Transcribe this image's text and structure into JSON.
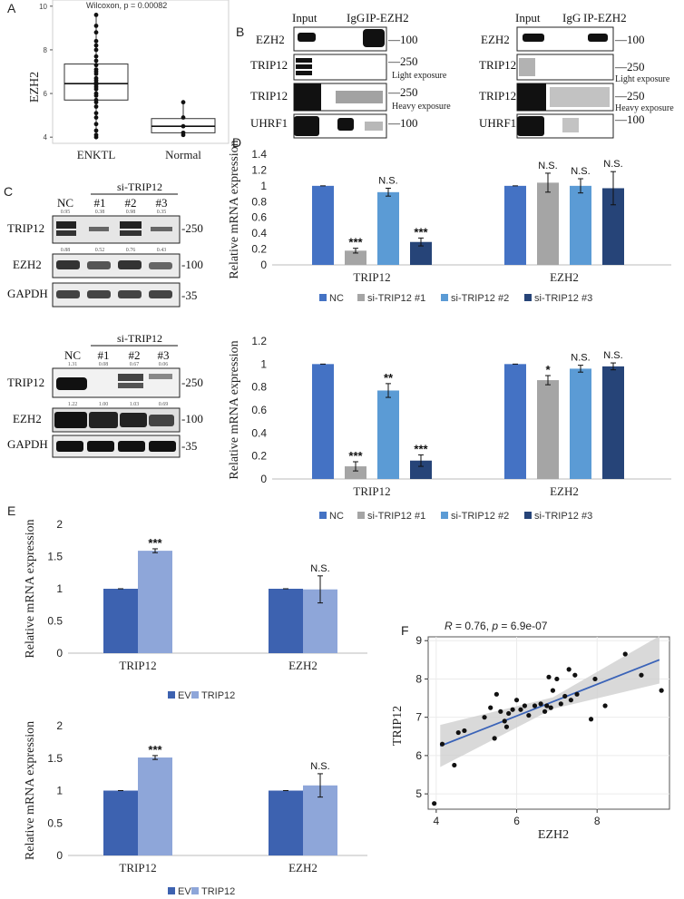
{
  "panels": {
    "A": "A",
    "B": "B",
    "C": "C",
    "D": "D",
    "E": "E",
    "F": "F"
  },
  "colors": {
    "nc": "#4472c4",
    "si1": "#a5a5a5",
    "si2": "#5b9bd5",
    "si3": "#264478",
    "ev": "#3d62b0",
    "trip12": "#8ea6d9",
    "fit_line": "#3a63b8",
    "ci_band": "#cfcfcf"
  },
  "panel_b": {
    "left": {
      "header": {
        "input": "Input",
        "igg": "IgG",
        "ip": "IP-EZH2"
      },
      "rows": [
        {
          "label": "EZH2",
          "size": "100",
          "note": ""
        },
        {
          "label": "TRIP12",
          "size": "250",
          "note": "Light exposure"
        },
        {
          "label": "TRIP12",
          "size": "250",
          "note": "Heavy exposure"
        },
        {
          "label": "UHRF1",
          "size": "100",
          "note": ""
        }
      ]
    },
    "right": {
      "header": {
        "input": "Input",
        "igg": "IgG",
        "ip": "IP-EZH2"
      },
      "rows": [
        {
          "label": "EZH2",
          "size": "100",
          "note": ""
        },
        {
          "label": "TRIP12",
          "size": "250",
          "note": "Light exposure"
        },
        {
          "label": "TRIP12",
          "size": "250",
          "note": "Heavy exposure"
        },
        {
          "label": "UHRF1",
          "size": "100",
          "note": ""
        }
      ]
    }
  },
  "panel_c": {
    "top": {
      "group": "si-TRIP12",
      "lanes": [
        "NC",
        "#1",
        "#2",
        "#3"
      ],
      "trip12_quant": [
        "0.95",
        "0.38",
        "0.98",
        "0.35"
      ],
      "ezh2_quant": [
        "0.88",
        "0.52",
        "0.76",
        "0.43"
      ],
      "rows": [
        {
          "label": "TRIP12",
          "size": "250"
        },
        {
          "label": "EZH2",
          "size": "100"
        },
        {
          "label": "GAPDH",
          "size": "35"
        }
      ]
    },
    "bottom": {
      "group": "si-TRIP12",
      "lanes": [
        "NC",
        "#1",
        "#2",
        "#3"
      ],
      "trip12_quant": [
        "1.31",
        "0.08",
        "0.67",
        "0.06"
      ],
      "ezh2_quant": [
        "1.22",
        "1.00",
        "1.03",
        "0.69"
      ],
      "rows": [
        {
          "label": "TRIP12",
          "size": "250"
        },
        {
          "label": "EZH2",
          "size": "100"
        },
        {
          "label": "GAPDH",
          "size": "35"
        }
      ]
    }
  },
  "chart_data": [
    {
      "id": "A",
      "type": "box",
      "title": "Wilcoxon, p = 0.00082",
      "ylabel": "EZH2",
      "ylim": [
        3.8,
        10.2
      ],
      "yticks": [
        4,
        6,
        8,
        10
      ],
      "categories": [
        "ENKTL",
        "Normal"
      ],
      "boxes": [
        {
          "name": "ENKTL",
          "min": 4.0,
          "q1": 5.7,
          "median": 6.45,
          "q3": 7.35,
          "max": 9.6,
          "points": [
            4.0,
            4.1,
            4.3,
            4.6,
            4.9,
            5.1,
            5.4,
            5.6,
            5.7,
            5.9,
            6.0,
            6.2,
            6.3,
            6.4,
            6.5,
            6.6,
            6.7,
            6.9,
            7.0,
            7.1,
            7.3,
            7.5,
            7.7,
            8.0,
            8.2,
            8.4,
            8.8,
            9.1,
            9.6
          ]
        },
        {
          "name": "Normal",
          "min": 4.1,
          "q1": 4.2,
          "median": 4.5,
          "q3": 4.85,
          "max": 5.6,
          "points": [
            4.1,
            4.2,
            4.5,
            4.9,
            5.6
          ]
        }
      ]
    },
    {
      "id": "D-top",
      "type": "bar",
      "ylabel": "Relative mRNA expression",
      "ylim": [
        0,
        1.4
      ],
      "yticks": [
        "0",
        "0.2",
        "0.4",
        "0.6",
        "0.8",
        "1",
        "1.2",
        "1.4"
      ],
      "categories": [
        "TRIP12",
        "EZH2"
      ],
      "series": [
        {
          "name": "NC",
          "values": [
            1.0,
            1.0
          ],
          "errors": [
            0.005,
            0.005
          ],
          "sig": [
            "",
            ""
          ]
        },
        {
          "name": "si-TRIP12 #1",
          "values": [
            0.18,
            1.04
          ],
          "errors": [
            0.03,
            0.12
          ],
          "sig": [
            "***",
            "N.S."
          ]
        },
        {
          "name": "si-TRIP12 #2",
          "values": [
            0.92,
            1.0
          ],
          "errors": [
            0.05,
            0.09
          ],
          "sig": [
            "N.S.",
            "N.S."
          ]
        },
        {
          "name": "si-TRIP12 #3",
          "values": [
            0.29,
            0.97
          ],
          "errors": [
            0.05,
            0.21
          ],
          "sig": [
            "***",
            "N.S."
          ]
        }
      ]
    },
    {
      "id": "D-bottom",
      "type": "bar",
      "ylabel": "Relative mRNA expression",
      "ylim": [
        0,
        1.2
      ],
      "yticks": [
        "0",
        "0.2",
        "0.4",
        "0.6",
        "0.8",
        "1",
        "1.2"
      ],
      "categories": [
        "TRIP12",
        "EZH2"
      ],
      "series": [
        {
          "name": "NC",
          "values": [
            1.0,
            1.0
          ],
          "errors": [
            0.005,
            0.005
          ],
          "sig": [
            "",
            ""
          ]
        },
        {
          "name": "si-TRIP12 #1",
          "values": [
            0.11,
            0.86
          ],
          "errors": [
            0.04,
            0.04
          ],
          "sig": [
            "***",
            "*"
          ]
        },
        {
          "name": "si-TRIP12 #2",
          "values": [
            0.77,
            0.96
          ],
          "errors": [
            0.06,
            0.03
          ],
          "sig": [
            "**",
            "N.S."
          ]
        },
        {
          "name": "si-TRIP12 #3",
          "values": [
            0.16,
            0.98
          ],
          "errors": [
            0.05,
            0.03
          ],
          "sig": [
            "***",
            "N.S."
          ]
        }
      ]
    },
    {
      "id": "E-top",
      "type": "bar",
      "ylabel": "Relative mRNA expression",
      "ylim": [
        0,
        2
      ],
      "yticks": [
        "0",
        "0.5",
        "1",
        "1.5",
        "2"
      ],
      "categories": [
        "TRIP12",
        "EZH2"
      ],
      "series": [
        {
          "name": "EV",
          "values": [
            1.0,
            1.0
          ],
          "errors": [
            0.005,
            0.005
          ],
          "sig": [
            "",
            ""
          ]
        },
        {
          "name": "TRIP12",
          "values": [
            1.59,
            0.99
          ],
          "errors": [
            0.03,
            0.21
          ],
          "sig": [
            "***",
            "N.S."
          ]
        }
      ]
    },
    {
      "id": "E-bottom",
      "type": "bar",
      "ylabel": "Relative mRNA expression",
      "ylim": [
        0,
        2
      ],
      "yticks": [
        "0",
        "0.5",
        "1",
        "1.5",
        "2"
      ],
      "categories": [
        "TRIP12",
        "EZH2"
      ],
      "series": [
        {
          "name": "EV",
          "values": [
            1.0,
            1.0
          ],
          "errors": [
            0.005,
            0.005
          ],
          "sig": [
            "",
            ""
          ]
        },
        {
          "name": "TRIP12",
          "values": [
            1.51,
            1.08
          ],
          "errors": [
            0.03,
            0.18
          ],
          "sig": [
            "***",
            "N.S."
          ]
        }
      ]
    },
    {
      "id": "F",
      "type": "scatter",
      "annotation": "R = 0.76, p = 6.9e-07",
      "annotation_parts": {
        "r_label": "R",
        "r_value": " = 0.76, ",
        "p_label": "p",
        "p_value": " = 6.9e-07"
      },
      "xlabel": "EZH2",
      "ylabel": "TRIP12",
      "xlim": [
        3.8,
        9.8
      ],
      "ylim": [
        4.6,
        9.1
      ],
      "xticks": [
        4,
        6,
        8
      ],
      "yticks": [
        5,
        6,
        7,
        8,
        9
      ],
      "fit": {
        "x0": 4.1,
        "y0": 6.25,
        "x1": 9.55,
        "y1": 8.5
      },
      "points": [
        [
          3.95,
          4.75
        ],
        [
          4.15,
          6.3
        ],
        [
          4.45,
          5.75
        ],
        [
          4.55,
          6.6
        ],
        [
          4.7,
          6.65
        ],
        [
          5.2,
          7.0
        ],
        [
          5.35,
          7.25
        ],
        [
          5.45,
          6.45
        ],
        [
          5.5,
          7.6
        ],
        [
          5.6,
          7.15
        ],
        [
          5.7,
          6.9
        ],
        [
          5.75,
          6.75
        ],
        [
          5.8,
          7.1
        ],
        [
          5.9,
          7.2
        ],
        [
          6.0,
          7.45
        ],
        [
          6.1,
          7.2
        ],
        [
          6.2,
          7.3
        ],
        [
          6.3,
          7.05
        ],
        [
          6.45,
          7.3
        ],
        [
          6.6,
          7.35
        ],
        [
          6.7,
          7.15
        ],
        [
          6.75,
          7.3
        ],
        [
          6.8,
          8.05
        ],
        [
          6.85,
          7.25
        ],
        [
          6.9,
          7.7
        ],
        [
          7.0,
          8.0
        ],
        [
          7.1,
          7.35
        ],
        [
          7.2,
          7.55
        ],
        [
          7.3,
          8.25
        ],
        [
          7.35,
          7.45
        ],
        [
          7.45,
          8.1
        ],
        [
          7.5,
          7.6
        ],
        [
          7.85,
          6.95
        ],
        [
          7.95,
          8.0
        ],
        [
          8.2,
          7.3
        ],
        [
          8.7,
          8.65
        ],
        [
          9.1,
          8.1
        ],
        [
          9.6,
          7.7
        ]
      ]
    }
  ]
}
